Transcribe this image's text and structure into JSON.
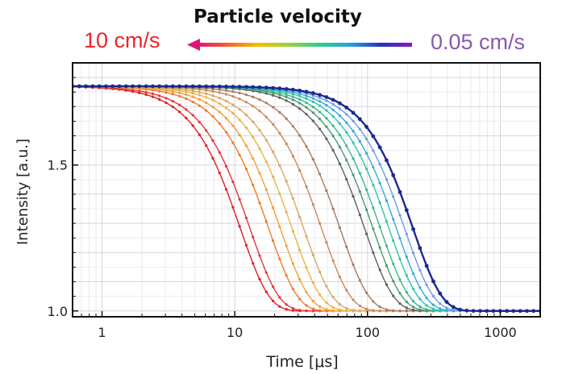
{
  "header": {
    "title": "Particle velocity",
    "left_label": "10 cm/s",
    "right_label": "0.05 cm/s"
  },
  "colors": {
    "fast": "#e8262b",
    "slow": "#8a58b0",
    "gradient": [
      "#e0137a",
      "#f06030",
      "#f5c000",
      "#9bd23a",
      "#2fcf8a",
      "#2aa0e0",
      "#2633b8",
      "#8b18c7"
    ]
  },
  "chart_data": {
    "type": "line",
    "xlabel": "Time [μs]",
    "ylabel": "Intensity [a.u.]",
    "x_scale": "log",
    "xlim": [
      0.6,
      2000
    ],
    "ylim": [
      0.98,
      1.85
    ],
    "x_ticks": [
      {
        "value": 1,
        "label": "1"
      },
      {
        "value": 10,
        "label": "10"
      },
      {
        "value": 100,
        "label": "100"
      },
      {
        "value": 1000,
        "label": "1000"
      }
    ],
    "y_ticks": [
      {
        "value": 1.0,
        "label": "1.0"
      },
      {
        "value": 1.5,
        "label": "1.5"
      }
    ],
    "grid": true,
    "model": "y = 1 + 0.77 * exp(-(t/tau)^2)",
    "series": [
      {
        "tau": 11,
        "color": "#e11d23"
      },
      {
        "tau": 13,
        "color": "#e8343a"
      },
      {
        "tau": 18,
        "color": "#ef7a2a"
      },
      {
        "tau": 22,
        "color": "#f0a238"
      },
      {
        "tau": 27,
        "color": "#e9b548"
      },
      {
        "tau": 33,
        "color": "#d8a860"
      },
      {
        "tau": 45,
        "color": "#c88a58"
      },
      {
        "tau": 62,
        "color": "#a87a60"
      },
      {
        "tau": 95,
        "color": "#606060"
      },
      {
        "tau": 110,
        "color": "#4c9a68"
      },
      {
        "tau": 125,
        "color": "#39b98a"
      },
      {
        "tau": 145,
        "color": "#2fc7a5"
      },
      {
        "tau": 165,
        "color": "#3aa8d8"
      },
      {
        "tau": 190,
        "color": "#6f9ae0"
      },
      {
        "tau": 220,
        "color": "#1b2a8c"
      }
    ]
  }
}
